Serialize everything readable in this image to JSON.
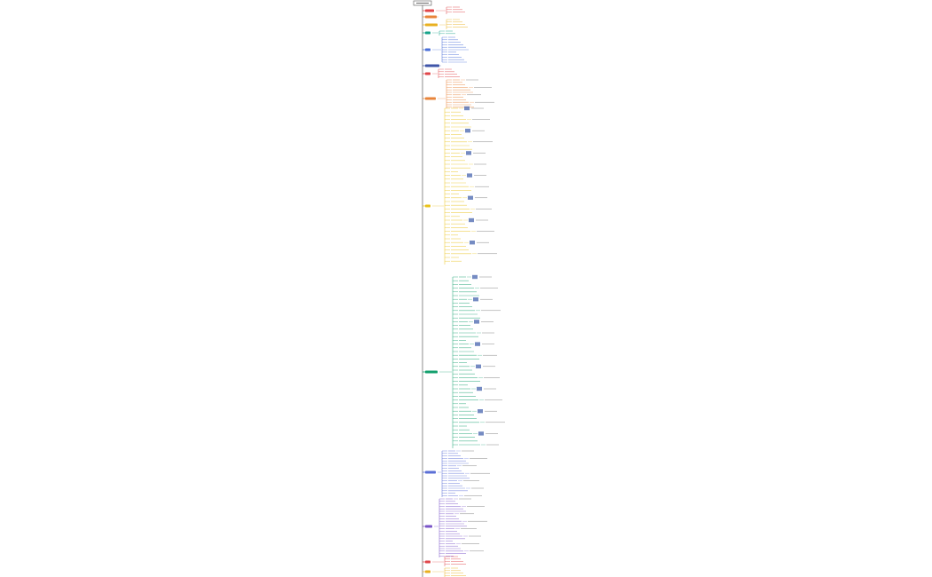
{
  "mind_map": {
    "branches": [
      {
        "color": "#e0464a"
      },
      {
        "color": "#e8843a"
      },
      {
        "color": "#e9b020"
      },
      {
        "color": "#16a38a"
      },
      {
        "color": "#4a6fd8"
      },
      {
        "color": "#3f55a8"
      },
      {
        "color": "#e0464a"
      },
      {
        "color": "#e8843a"
      },
      {
        "color": "#e9c21a"
      },
      {
        "color": "#14a06e"
      },
      {
        "color": "#5b6fd6"
      },
      {
        "color": "#7a55c8"
      },
      {
        "color": "#e0464a"
      },
      {
        "color": "#e9b020"
      }
    ]
  }
}
